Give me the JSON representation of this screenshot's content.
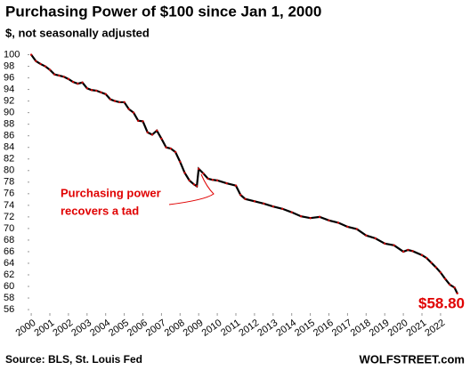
{
  "chart_data": {
    "type": "line",
    "title": "Purchasing  Power of $100 since Jan 1, 2000",
    "subtitle": "$, not seasonally adjusted",
    "annotation": [
      "Purchasing power",
      "recovers a tad"
    ],
    "end_label": {
      "value": 58.8,
      "label": "$58.80"
    },
    "source": "Source: BLS, St. Louis Fed",
    "brand": "WOLFSTREET.com",
    "x": [
      2000,
      2000.25,
      2000.5,
      2000.75,
      2001,
      2001.25,
      2001.5,
      2001.75,
      2002,
      2002.25,
      2002.5,
      2002.75,
      2003,
      2003.25,
      2003.5,
      2003.75,
      2004,
      2004.25,
      2004.5,
      2004.75,
      2005,
      2005.25,
      2005.5,
      2005.75,
      2006,
      2006.25,
      2006.5,
      2006.75,
      2007,
      2007.25,
      2007.5,
      2007.75,
      2008,
      2008.25,
      2008.5,
      2008.75,
      2008.9,
      2009,
      2009.25,
      2009.5,
      2009.75,
      2010,
      2010.5,
      2011,
      2011.25,
      2011.5,
      2012,
      2012.5,
      2013,
      2013.5,
      2014,
      2014.5,
      2015,
      2015.5,
      2016,
      2016.5,
      2017,
      2017.5,
      2018,
      2018.5,
      2019,
      2019.5,
      2020,
      2020.25,
      2020.5,
      2021,
      2021.25,
      2021.5,
      2021.75,
      2022,
      2022.25,
      2022.5,
      2022.75,
      2022.9
    ],
    "series": [
      {
        "name": "Purchasing power",
        "color": "#000000",
        "marker_color": "#cc0000",
        "values": [
          100,
          98.9,
          98.4,
          98.0,
          97.4,
          96.6,
          96.4,
          96.2,
          95.8,
          95.3,
          95.0,
          95.2,
          94.2,
          93.9,
          93.8,
          93.5,
          93.2,
          92.3,
          92.0,
          91.8,
          91.8,
          90.6,
          90.0,
          88.6,
          88.5,
          86.6,
          86.2,
          86.9,
          85.5,
          84.0,
          83.8,
          83.2,
          81.5,
          79.6,
          78.3,
          77.6,
          77.3,
          80.3,
          79.5,
          78.6,
          78.4,
          78.3,
          77.8,
          77.4,
          75.8,
          75.1,
          74.7,
          74.3,
          73.8,
          73.4,
          72.8,
          72.1,
          71.8,
          72.0,
          71.4,
          71.0,
          70.3,
          69.9,
          68.8,
          68.3,
          67.4,
          67.1,
          66.0,
          66.3,
          66.1,
          65.4,
          64.9,
          64.1,
          63.3,
          62.4,
          61.3,
          60.3,
          59.8,
          58.8
        ]
      }
    ],
    "xlim": [
      1999.9,
      2023.2
    ],
    "ylim": [
      55.4,
      101.0
    ],
    "xticks": [
      2000,
      2001,
      2002,
      2003,
      2004,
      2005,
      2006,
      2007,
      2008,
      2009,
      2010,
      2011,
      2012,
      2013,
      2014,
      2015,
      2016,
      2017,
      2018,
      2019,
      2020,
      2021,
      2022
    ],
    "yticks": [
      56,
      58,
      60,
      62,
      64,
      66,
      68,
      70,
      72,
      74,
      76,
      78,
      80,
      82,
      84,
      86,
      88,
      90,
      92,
      94,
      96,
      98,
      100
    ],
    "grid": false
  }
}
